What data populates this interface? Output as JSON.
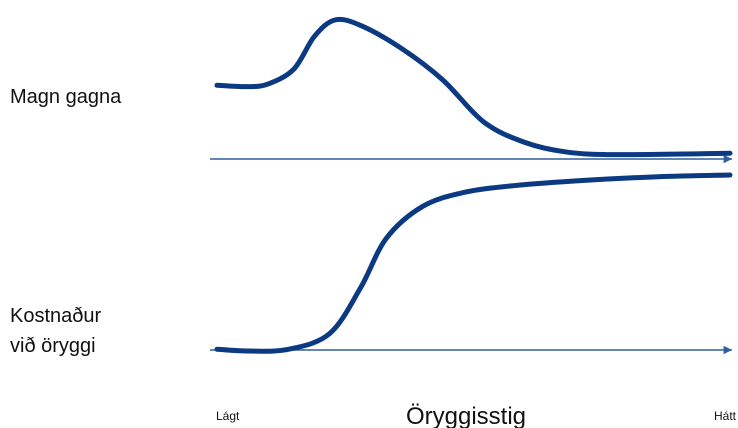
{
  "chart_data": {
    "type": "line",
    "xlabel": "Öryggisstig",
    "x_tick_labels": [
      "Lágt",
      "Hátt"
    ],
    "xlim": [
      0,
      1
    ],
    "grid": false,
    "line_color": "#0b3a82",
    "axis_color": "#2f5f9e",
    "panels": [
      {
        "label": "Magn gagna",
        "ylim": [
          0,
          1
        ],
        "points": [
          [
            0.0,
            0.52
          ],
          [
            0.06,
            0.51
          ],
          [
            0.1,
            0.53
          ],
          [
            0.15,
            0.64
          ],
          [
            0.19,
            0.88
          ],
          [
            0.23,
            1.0
          ],
          [
            0.28,
            0.96
          ],
          [
            0.36,
            0.79
          ],
          [
            0.44,
            0.56
          ],
          [
            0.52,
            0.25
          ],
          [
            0.6,
            0.1
          ],
          [
            0.68,
            0.03
          ],
          [
            0.78,
            0.01
          ],
          [
            1.0,
            0.02
          ]
        ]
      },
      {
        "label": "Kostnaður við öryggi",
        "ylim": [
          0,
          1
        ],
        "points": [
          [
            0.0,
            0.01
          ],
          [
            0.06,
            0.0
          ],
          [
            0.14,
            0.01
          ],
          [
            0.22,
            0.1
          ],
          [
            0.28,
            0.36
          ],
          [
            0.33,
            0.64
          ],
          [
            0.4,
            0.82
          ],
          [
            0.48,
            0.9
          ],
          [
            0.58,
            0.94
          ],
          [
            0.72,
            0.97
          ],
          [
            0.86,
            0.99
          ],
          [
            1.0,
            1.0
          ]
        ]
      }
    ]
  }
}
